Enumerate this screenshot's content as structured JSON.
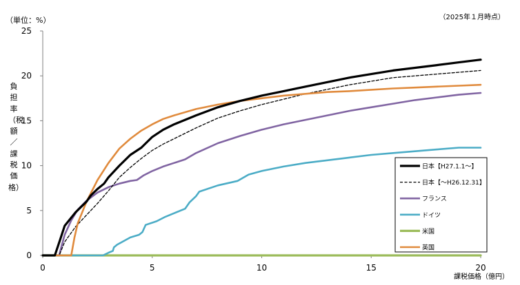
{
  "chart_data": {
    "type": "line",
    "unit_label": "（単位：%）",
    "note": "（2025年１月時点）",
    "xlabel": "課税価格（億円）",
    "ylabel": "負担率（税額／課税価格）",
    "xlim": [
      0,
      20
    ],
    "ylim": [
      0,
      25
    ],
    "x_ticks": [
      0,
      5,
      10,
      15,
      20
    ],
    "y_ticks": [
      0,
      5,
      10,
      15,
      20,
      25
    ],
    "series": [
      {
        "name": "日本【H27.1.1～】",
        "color": "#000000",
        "width": 3.2,
        "dash": "",
        "points": [
          [
            0,
            0
          ],
          [
            0.55,
            0
          ],
          [
            0.62,
            0.5
          ],
          [
            0.8,
            1.8
          ],
          [
            1.0,
            3.3
          ],
          [
            1.5,
            4.8
          ],
          [
            2.0,
            6.0
          ],
          [
            2.2,
            6.7
          ],
          [
            2.5,
            7.4
          ],
          [
            2.8,
            8.0
          ],
          [
            3.0,
            8.7
          ],
          [
            3.5,
            10.0
          ],
          [
            4.0,
            11.2
          ],
          [
            4.5,
            12.0
          ],
          [
            5.0,
            13.2
          ],
          [
            5.5,
            14.0
          ],
          [
            6.0,
            14.6
          ],
          [
            7.0,
            15.6
          ],
          [
            8.0,
            16.5
          ],
          [
            9.0,
            17.2
          ],
          [
            10.0,
            17.8
          ],
          [
            11.0,
            18.3
          ],
          [
            12.0,
            18.8
          ],
          [
            13.0,
            19.3
          ],
          [
            14.0,
            19.8
          ],
          [
            15.0,
            20.2
          ],
          [
            16.0,
            20.6
          ],
          [
            17.0,
            20.9
          ],
          [
            18.0,
            21.2
          ],
          [
            19.0,
            21.5
          ],
          [
            20.0,
            21.8
          ]
        ]
      },
      {
        "name": "日本【～H26.12.31】",
        "color": "#000000",
        "width": 1.3,
        "dash": "4,2.5",
        "points": [
          [
            0,
            0
          ],
          [
            0.75,
            0
          ],
          [
            0.85,
            0.6
          ],
          [
            1.0,
            1.5
          ],
          [
            1.5,
            3.2
          ],
          [
            2.0,
            4.5
          ],
          [
            2.5,
            5.8
          ],
          [
            3.0,
            7.2
          ],
          [
            3.5,
            8.7
          ],
          [
            4.0,
            9.8
          ],
          [
            4.5,
            10.8
          ],
          [
            5.0,
            11.7
          ],
          [
            5.5,
            12.4
          ],
          [
            6.0,
            13.0
          ],
          [
            7.0,
            14.2
          ],
          [
            8.0,
            15.3
          ],
          [
            9.0,
            16.1
          ],
          [
            10.0,
            16.8
          ],
          [
            11.0,
            17.4
          ],
          [
            12.0,
            18.0
          ],
          [
            13.0,
            18.5
          ],
          [
            14.0,
            19.0
          ],
          [
            15.0,
            19.4
          ],
          [
            16.0,
            19.8
          ],
          [
            17.0,
            20.0
          ],
          [
            18.0,
            20.2
          ],
          [
            19.0,
            20.4
          ],
          [
            20.0,
            20.6
          ]
        ]
      },
      {
        "name": "フランス",
        "color": "#8064A2",
        "width": 2.6,
        "dash": "",
        "points": [
          [
            0,
            0
          ],
          [
            0.75,
            0
          ],
          [
            0.8,
            0.5
          ],
          [
            1.0,
            2.3
          ],
          [
            1.3,
            3.9
          ],
          [
            1.6,
            5.1
          ],
          [
            2.0,
            6.1
          ],
          [
            2.5,
            7.0
          ],
          [
            3.0,
            7.6
          ],
          [
            3.5,
            8.0
          ],
          [
            4.0,
            8.3
          ],
          [
            4.3,
            8.4
          ],
          [
            4.6,
            8.9
          ],
          [
            5.0,
            9.4
          ],
          [
            5.5,
            9.9
          ],
          [
            6.0,
            10.3
          ],
          [
            6.5,
            10.7
          ],
          [
            7.0,
            11.4
          ],
          [
            8.0,
            12.5
          ],
          [
            9.0,
            13.3
          ],
          [
            10.0,
            14.0
          ],
          [
            11.0,
            14.6
          ],
          [
            12.0,
            15.1
          ],
          [
            13.0,
            15.6
          ],
          [
            14.0,
            16.1
          ],
          [
            15.0,
            16.5
          ],
          [
            16.0,
            16.9
          ],
          [
            17.0,
            17.3
          ],
          [
            18.0,
            17.6
          ],
          [
            19.0,
            17.9
          ],
          [
            20.0,
            18.1
          ]
        ]
      },
      {
        "name": "ドイツ",
        "color": "#4BACC6",
        "width": 2.6,
        "dash": "",
        "points": [
          [
            0,
            0
          ],
          [
            2.75,
            0
          ],
          [
            3.05,
            0.35
          ],
          [
            3.2,
            0.5
          ],
          [
            3.25,
            0.9
          ],
          [
            3.4,
            1.2
          ],
          [
            3.7,
            1.6
          ],
          [
            4.0,
            2.0
          ],
          [
            4.4,
            2.3
          ],
          [
            4.55,
            2.6
          ],
          [
            4.7,
            3.4
          ],
          [
            5.2,
            3.8
          ],
          [
            5.6,
            4.3
          ],
          [
            6.0,
            4.7
          ],
          [
            6.5,
            5.2
          ],
          [
            6.7,
            5.9
          ],
          [
            7.0,
            6.6
          ],
          [
            7.15,
            7.1
          ],
          [
            8.0,
            7.8
          ],
          [
            8.9,
            8.3
          ],
          [
            9.4,
            9.0
          ],
          [
            10.0,
            9.4
          ],
          [
            11.0,
            9.9
          ],
          [
            12.0,
            10.3
          ],
          [
            13.0,
            10.6
          ],
          [
            14.0,
            10.9
          ],
          [
            15.0,
            11.2
          ],
          [
            16.0,
            11.4
          ],
          [
            17.0,
            11.6
          ],
          [
            18.0,
            11.8
          ],
          [
            19.0,
            12.0
          ],
          [
            20.0,
            12.0
          ]
        ]
      },
      {
        "name": "米国",
        "color": "#9BBB59",
        "width": 3.2,
        "dash": "",
        "points": [
          [
            0,
            0
          ],
          [
            20,
            0
          ]
        ]
      },
      {
        "name": "英国",
        "color": "#E08A3C",
        "width": 2.6,
        "dash": "",
        "points": [
          [
            0,
            0
          ],
          [
            1.3,
            0
          ],
          [
            1.45,
            2.0
          ],
          [
            1.6,
            3.6
          ],
          [
            1.8,
            4.8
          ],
          [
            2.0,
            6.0
          ],
          [
            2.5,
            8.4
          ],
          [
            3.0,
            10.3
          ],
          [
            3.5,
            11.9
          ],
          [
            4.0,
            13.0
          ],
          [
            4.5,
            13.9
          ],
          [
            5.0,
            14.6
          ],
          [
            5.5,
            15.2
          ],
          [
            6.0,
            15.6
          ],
          [
            7.0,
            16.3
          ],
          [
            8.0,
            16.8
          ],
          [
            9.0,
            17.2
          ],
          [
            10.0,
            17.5
          ],
          [
            11.0,
            17.8
          ],
          [
            12.0,
            18.0
          ],
          [
            13.0,
            18.2
          ],
          [
            14.0,
            18.3
          ],
          [
            15.0,
            18.45
          ],
          [
            16.0,
            18.6
          ],
          [
            17.0,
            18.7
          ],
          [
            18.0,
            18.8
          ],
          [
            19.0,
            18.9
          ],
          [
            20.0,
            19.0
          ]
        ]
      }
    ],
    "legend": {
      "placement": "right"
    }
  }
}
